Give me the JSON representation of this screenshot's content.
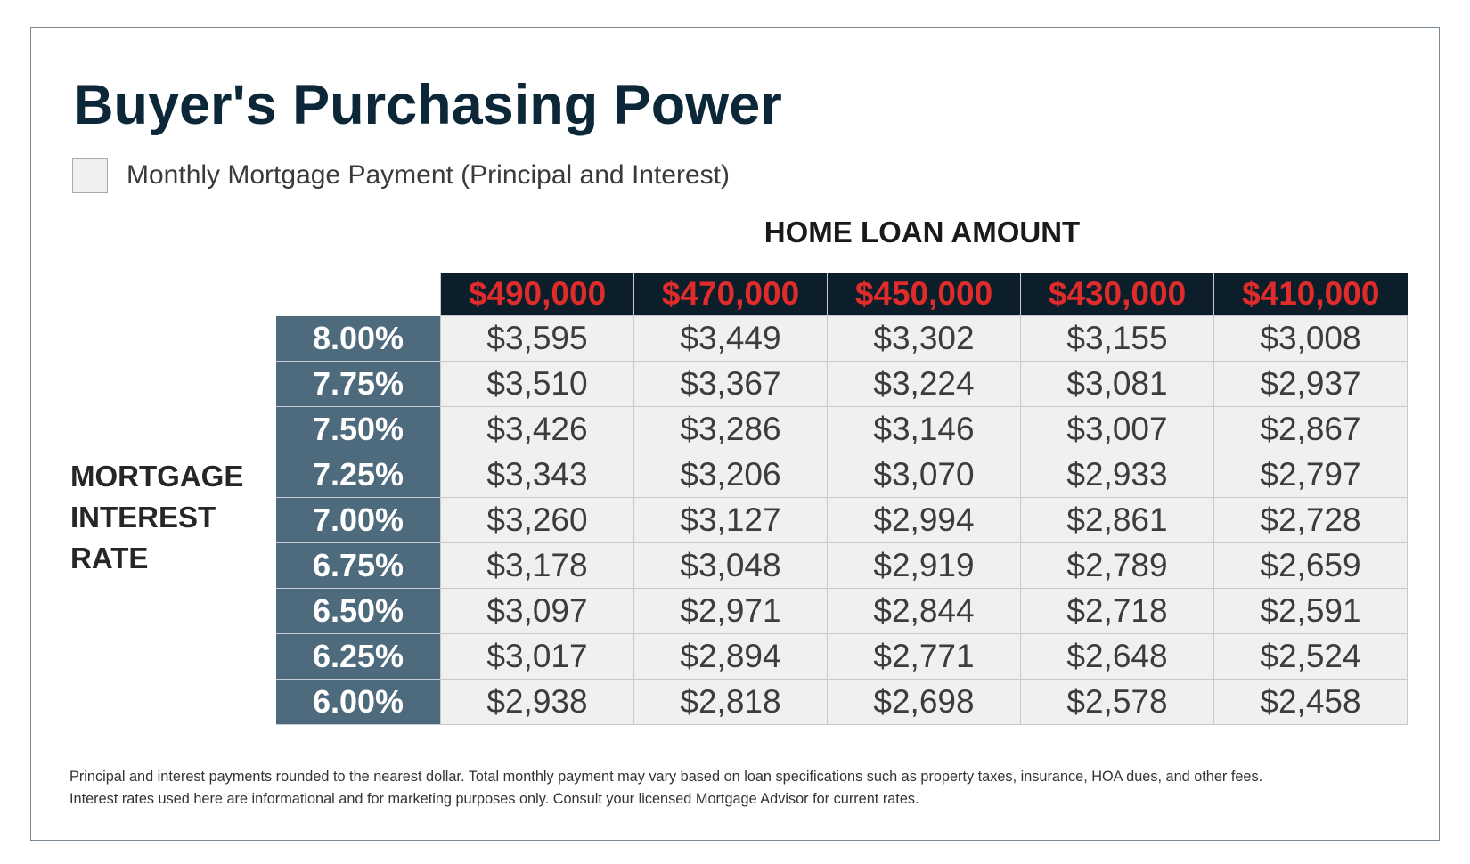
{
  "title": "Buyer's Purchasing Power",
  "legend": {
    "label": "Monthly Mortgage Payment (Principal and Interest)"
  },
  "colors": {
    "title": "#0c2738",
    "header_bg": "#0d1e2b",
    "header_text": "#e02b2b",
    "rate_bg": "#4d6b7c",
    "cell_bg": "#f0f0f0"
  },
  "footnotes": [
    "Principal and interest payments rounded to the nearest dollar. Total monthly payment may vary based on loan specifications such as property taxes, insurance, HOA dues, and other fees.",
    "Interest rates used here are informational and for marketing purposes only. Consult your licensed Mortgage Advisor for current rates."
  ],
  "chart_data": {
    "type": "table",
    "title": "Buyer's Purchasing Power",
    "column_header_title": "HOME LOAN AMOUNT",
    "row_header_title_lines": [
      "MORTGAGE",
      "INTEREST",
      "RATE"
    ],
    "columns": [
      "$490,000",
      "$470,000",
      "$450,000",
      "$430,000",
      "$410,000"
    ],
    "rows": [
      {
        "rate": "8.00%",
        "values": [
          "$3,595",
          "$3,449",
          "$3,302",
          "$3,155",
          "$3,008"
        ]
      },
      {
        "rate": "7.75%",
        "values": [
          "$3,510",
          "$3,367",
          "$3,224",
          "$3,081",
          "$2,937"
        ]
      },
      {
        "rate": "7.50%",
        "values": [
          "$3,426",
          "$3,286",
          "$3,146",
          "$3,007",
          "$2,867"
        ]
      },
      {
        "rate": "7.25%",
        "values": [
          "$3,343",
          "$3,206",
          "$3,070",
          "$2,933",
          "$2,797"
        ]
      },
      {
        "rate": "7.00%",
        "values": [
          "$3,260",
          "$3,127",
          "$2,994",
          "$2,861",
          "$2,728"
        ]
      },
      {
        "rate": "6.75%",
        "values": [
          "$3,178",
          "$3,048",
          "$2,919",
          "$2,789",
          "$2,659"
        ]
      },
      {
        "rate": "6.50%",
        "values": [
          "$3,097",
          "$2,971",
          "$2,844",
          "$2,718",
          "$2,591"
        ]
      },
      {
        "rate": "6.25%",
        "values": [
          "$3,017",
          "$2,894",
          "$2,771",
          "$2,648",
          "$2,524"
        ]
      },
      {
        "rate": "6.00%",
        "values": [
          "$2,938",
          "$2,818",
          "$2,698",
          "$2,578",
          "$2,458"
        ]
      }
    ]
  }
}
